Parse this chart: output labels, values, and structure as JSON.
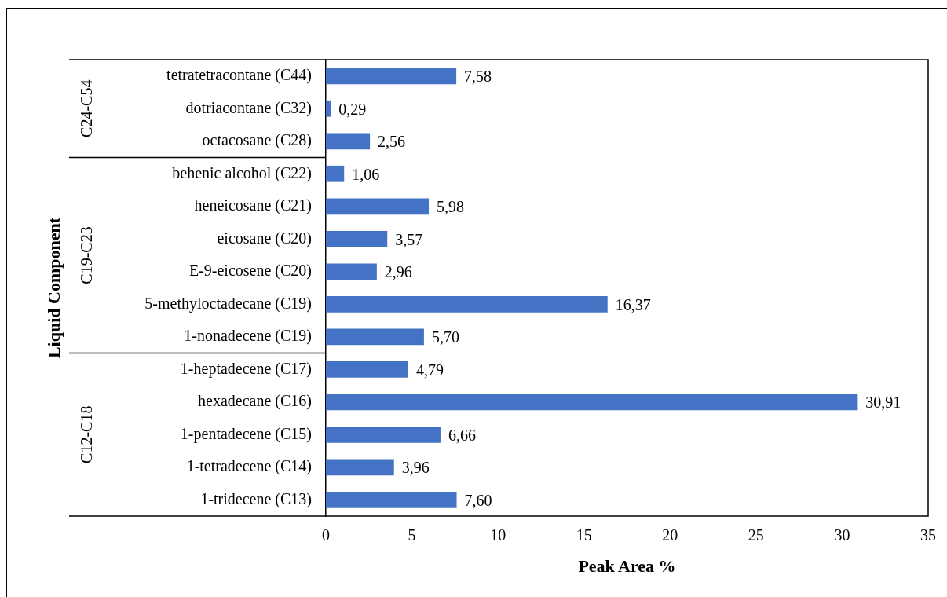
{
  "chart_data": {
    "type": "bar",
    "orientation": "horizontal",
    "xlabel": "Peak Area %",
    "ylabel": "Liquid Component",
    "categories": [
      "tetratetracontane (C44)",
      "dotriacontane (C32)",
      "octacosane (C28)",
      "behenic alcohol (C22)",
      "heneicosane (C21)",
      "eicosane (C20)",
      "E-9-eicosene (C20)",
      "5-methyloctadecane (C19)",
      "1-nonadecene (C19)",
      "1-heptadecene (C17)",
      "hexadecane (C16)",
      "1-pentadecene (C15)",
      "1-tetradecene (C14)",
      "1-tridecene (C13)"
    ],
    "values": [
      7.58,
      0.29,
      2.56,
      1.06,
      5.98,
      3.57,
      2.96,
      16.37,
      5.7,
      4.79,
      30.91,
      6.66,
      3.96,
      7.6
    ],
    "value_labels": [
      "7,58",
      "0,29",
      "2,56",
      "1,06",
      "5,98",
      "3,57",
      "2,96",
      "16,37",
      "5,70",
      "4,79",
      "30,91",
      "6,66",
      "3,96",
      "7,60"
    ],
    "color": "#4472c4",
    "xlim": [
      0,
      35
    ],
    "xticks": [
      0,
      5,
      10,
      15,
      20,
      25,
      30,
      35
    ],
    "grid": false,
    "legend": false,
    "annotations": [
      "C24-C54",
      "C19-C23",
      "C12-C18"
    ]
  }
}
